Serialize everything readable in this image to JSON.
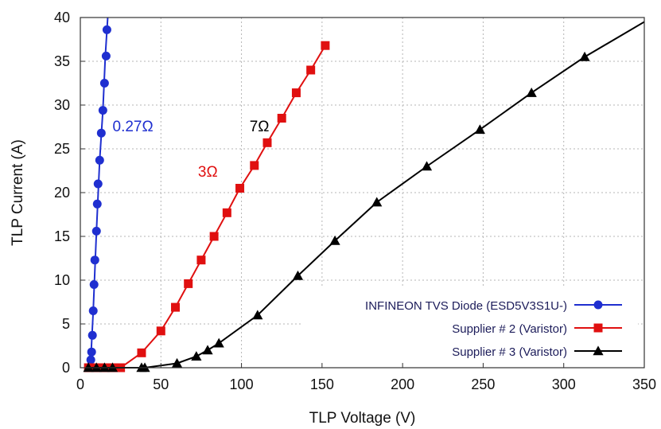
{
  "chart_data": {
    "type": "line",
    "title": "",
    "xlabel": "TLP Voltage (V)",
    "ylabel": "TLP Current (A)",
    "xlim": [
      0,
      350
    ],
    "ylim": [
      0,
      40
    ],
    "xticks": [
      0,
      50,
      100,
      150,
      200,
      250,
      300,
      350
    ],
    "yticks": [
      0,
      5,
      10,
      15,
      20,
      25,
      30,
      35,
      40
    ],
    "grid": true,
    "legend_position": "bottom-right",
    "series": [
      {
        "name": "INFINEON TVS Diode (ESD5V3S1U-)",
        "color": "#1f2fd0",
        "marker": "circle",
        "x": [
          6.0,
          6.5,
          7.0,
          7.5,
          8.0,
          8.5,
          9.0,
          10.0,
          10.5,
          11.0,
          12.0,
          13.0,
          14.0,
          15.0,
          16.0
        ],
        "y": [
          0.1,
          0.9,
          1.8,
          3.7,
          6.5,
          9.5,
          12.3,
          15.6,
          18.7,
          21.0,
          23.7,
          26.8,
          29.4,
          32.5,
          35.6
        ],
        "line_x": [
          5.5,
          6.5,
          8.0,
          10.0,
          12.0,
          14.0,
          15.5,
          17.0
        ],
        "line_y": [
          0,
          1.0,
          6.5,
          15.6,
          23.7,
          29.4,
          35.6,
          40.0
        ],
        "extra_points": [
          {
            "x": 16.5,
            "y": 38.6
          }
        ]
      },
      {
        "name": "Supplier # 2 (Varistor)",
        "color": "#e01010",
        "marker": "square",
        "x": [
          5,
          10,
          15,
          20,
          25,
          38,
          50,
          59,
          67,
          75,
          83,
          91,
          99,
          108,
          116,
          125,
          134,
          143,
          152
        ],
        "y": [
          0,
          0,
          0,
          0,
          0,
          1.7,
          4.2,
          6.9,
          9.6,
          12.3,
          15.0,
          17.7,
          20.5,
          23.1,
          25.7,
          28.5,
          31.4,
          34.0,
          36.8
        ],
        "label": "3Ω"
      },
      {
        "name": "Supplier # 3 (Varistor)",
        "color": "#000000",
        "marker": "triangle",
        "x": [
          5,
          10,
          15,
          20,
          38,
          40,
          60,
          72,
          79,
          86,
          110,
          135,
          158,
          184,
          215,
          248,
          280,
          313
        ],
        "y": [
          0,
          0,
          0,
          0,
          0,
          0,
          0.5,
          1.3,
          2.0,
          2.8,
          6.0,
          10.5,
          14.5,
          18.9,
          23.0,
          27.2,
          31.4,
          35.5
        ],
        "line_x_end": 350,
        "line_y_end": 39.5,
        "label": "7Ω"
      }
    ],
    "annotations": [
      {
        "text": "0.27Ω",
        "x": 20,
        "y": 27,
        "color": "#1f2fd0"
      },
      {
        "text": "3Ω",
        "x": 73,
        "y": 21.8,
        "color": "#e01010"
      },
      {
        "text": "7Ω",
        "x": 105,
        "y": 27,
        "color": "#000000"
      }
    ]
  }
}
